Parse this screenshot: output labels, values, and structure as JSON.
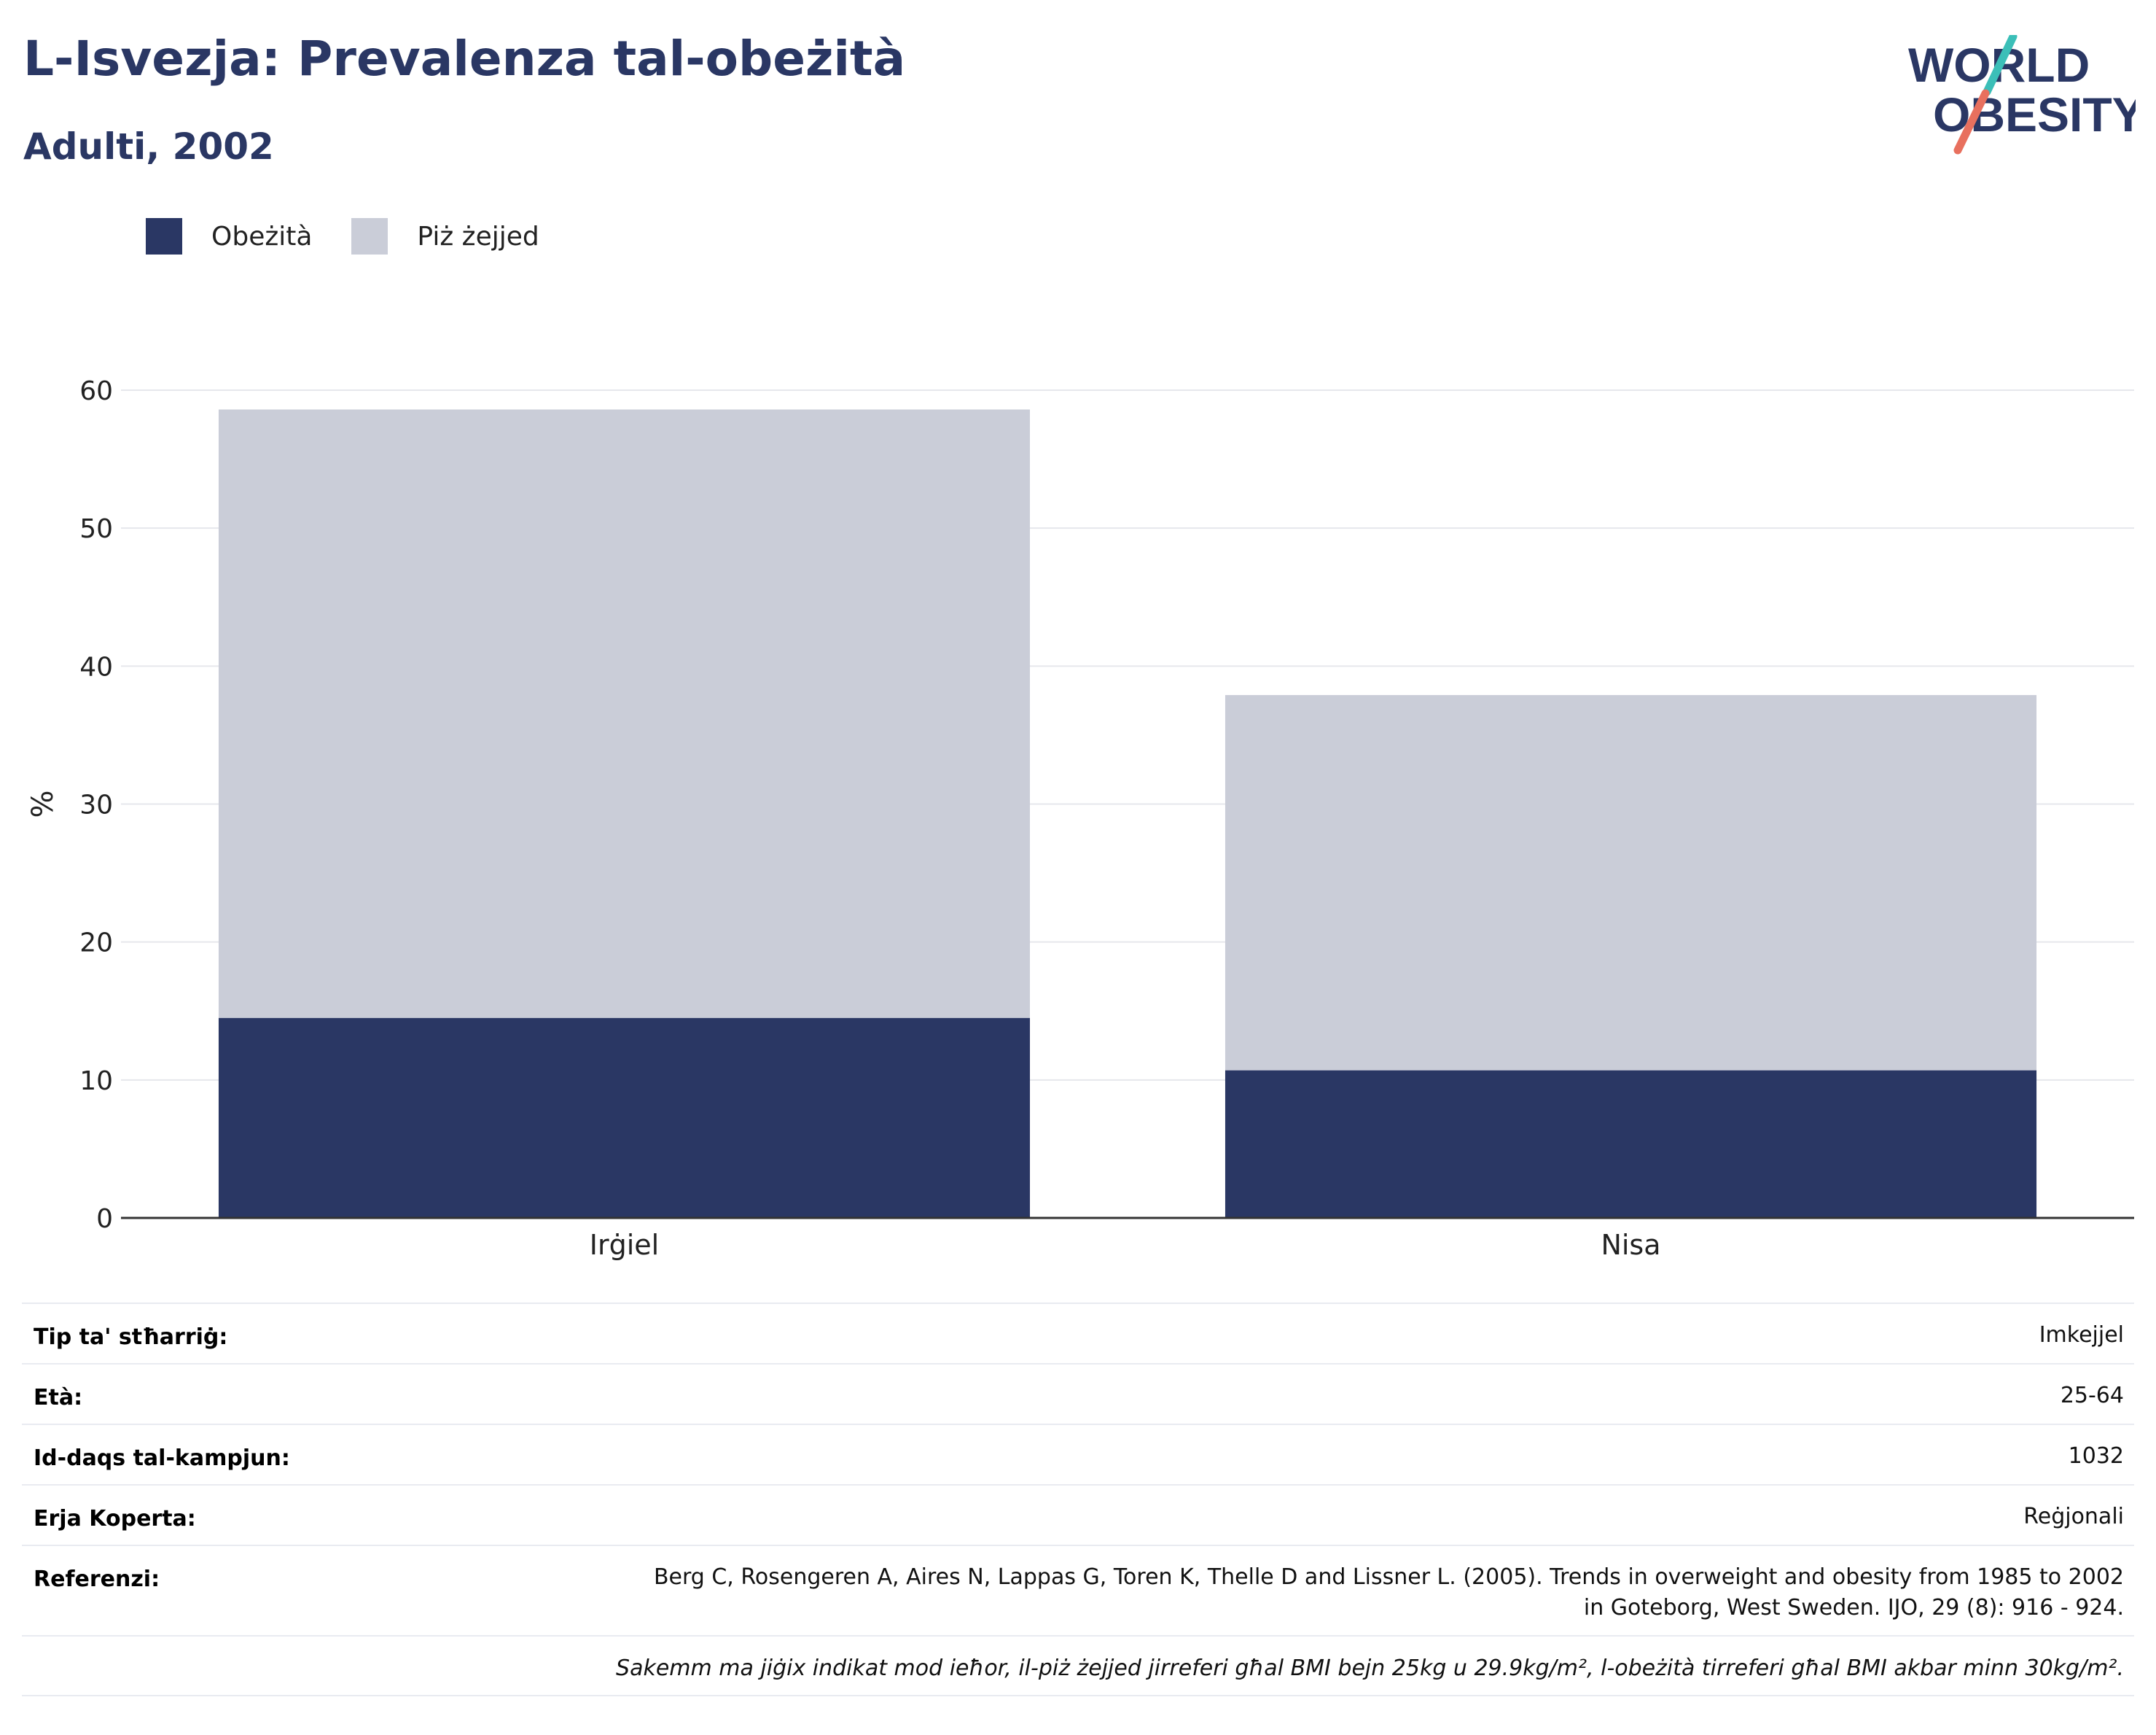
{
  "header": {
    "title": "L-Isvezja: Prevalenza tal-obeżità",
    "subtitle": "Adulti, 2002"
  },
  "logo": {
    "line1": "WORLD",
    "line2": "OBESITY"
  },
  "colors": {
    "obesity": "#2a3764",
    "overweight": "#cacdd8",
    "text_accent": "#2a3764",
    "logo_teal": "#3bbfb8",
    "logo_coral": "#e8705e"
  },
  "chart_data": {
    "type": "bar",
    "stacked": true,
    "categories": [
      "Irġiel",
      "Nisa"
    ],
    "series": [
      {
        "name": "Obeżità",
        "values": [
          14.5,
          10.7
        ]
      },
      {
        "name": "Piż żejjed",
        "values": [
          44.1,
          27.2
        ]
      }
    ],
    "ylabel": "%",
    "ylim": [
      0,
      60
    ],
    "yticks": [
      0,
      10,
      20,
      30,
      40,
      50,
      60
    ],
    "grid": true,
    "legend_position": "top-left"
  },
  "meta": {
    "rows": [
      {
        "key": "Tip ta' stħarriġ:",
        "value": "Imkejjel"
      },
      {
        "key": "Età:",
        "value": "25-64"
      },
      {
        "key": "Id-daqs tal-kampjun:",
        "value": "1032"
      },
      {
        "key": "Erja Koperta:",
        "value": "Reġjonali"
      }
    ],
    "reference_key": "Referenzi:",
    "reference_line1": "Berg C, Rosengeren A, Aires N, Lappas G, Toren K, Thelle D and Lissner L. (2005). Trends in overweight and obesity from 1985 to 2002",
    "reference_line2": "in Goteborg, West Sweden. IJO, 29 (8): 916 - 924.",
    "note": "Sakemm ma jiġix indikat mod ieħor, il-piż żejjed jirreferi għal BMI bejn 25kg u 29.9kg/m², l-obeżità tirreferi għal BMI akbar minn 30kg/m²."
  }
}
